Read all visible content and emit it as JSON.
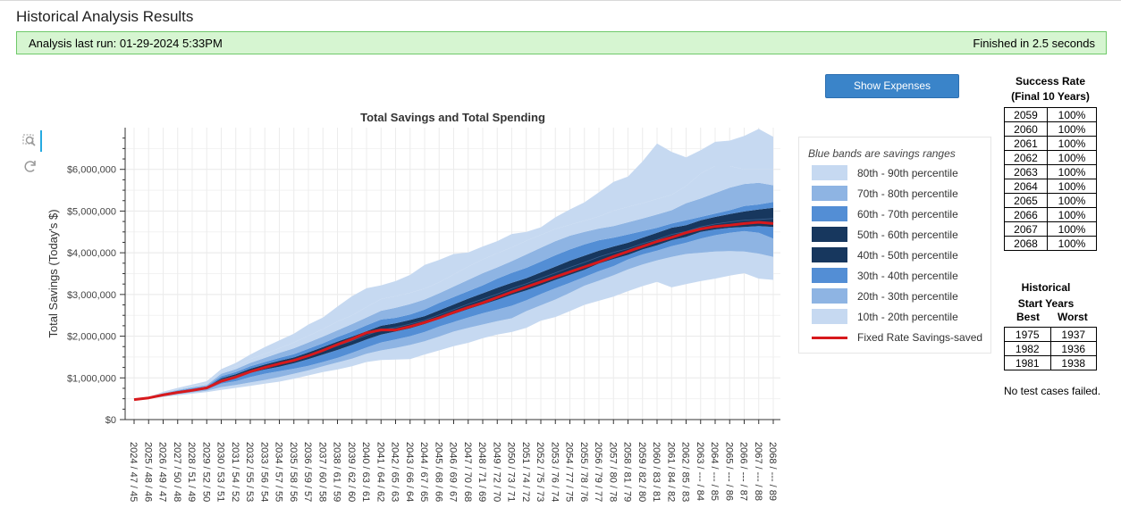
{
  "header": {
    "title": "Historical Analysis Results"
  },
  "banner": {
    "last_run": "Analysis last run: 01-29-2024 5:33PM",
    "finished": "Finished in 2.5 seconds",
    "bg": "#d6f5d1",
    "border": "#6fc96a"
  },
  "toolbar": {
    "show_expenses_label": "Show Expenses",
    "tool_icons": [
      "box-zoom-icon",
      "reset-icon"
    ]
  },
  "chart_data": {
    "type": "area",
    "title": "Total Savings and Total Spending",
    "xlabel": "",
    "ylabel": "Total Savings (Today's $)",
    "ylim": [
      0,
      7000000
    ],
    "y_ticks": [
      0,
      1000000,
      2000000,
      3000000,
      4000000,
      5000000,
      6000000
    ],
    "y_tick_labels": [
      "$0",
      "$1,000,000",
      "$2,000,000",
      "$3,000,000",
      "$4,000,000",
      "$5,000,000",
      "$6,000,000"
    ],
    "categories": [
      "2024 / 47 / 45",
      "2025 / 48 / 46",
      "2026 / 49 / 47",
      "2027 / 50 / 48",
      "2028 / 51 / 49",
      "2029 / 52 / 50",
      "2030 / 53 / 51",
      "2031 / 54 / 52",
      "2032 / 55 / 53",
      "2033 / 56 / 54",
      "2034 / 57 / 55",
      "2035 / 58 / 56",
      "2036 / 59 / 57",
      "2037 / 60 / 58",
      "2038 / 61 / 59",
      "2039 / 62 / 60",
      "2040 / 63 / 61",
      "2041 / 64 / 62",
      "2042 / 65 / 63",
      "2043 / 66 / 64",
      "2044 / 67 / 65",
      "2045 / 68 / 66",
      "2046 / 69 / 67",
      "2047 / 70 / 68",
      "2048 / 71 / 69",
      "2049 / 72 / 70",
      "2050 / 73 / 71",
      "2051 / 74 / 72",
      "2052 / 75 / 73",
      "2053 / 76 / 74",
      "2054 / 77 / 75",
      "2055 / 78 / 76",
      "2056 / 79 / 77",
      "2057 / 80 / 78",
      "2058 / 81 / 79",
      "2059 / 82 / 80",
      "2060 / 83 / 81",
      "2061 / 84 / 82",
      "2062 / 85 / 83",
      "2063 / --- / 84",
      "2064 / --- / 85",
      "2065 / --- / 86",
      "2066 / --- / 87",
      "2067 / --- / 88",
      "2068 / --- / 89"
    ],
    "percentile_bounds": [
      {
        "name": "10th",
        "values": [
          470000,
          500000,
          540000,
          580000,
          620000,
          660000,
          710000,
          760000,
          810000,
          860000,
          910000,
          980000,
          1060000,
          1140000,
          1200000,
          1280000,
          1380000,
          1430000,
          1440000,
          1450000,
          1560000,
          1660000,
          1760000,
          1840000,
          1950000,
          2040000,
          2100000,
          2200000,
          2370000,
          2460000,
          2600000,
          2750000,
          2850000,
          2950000,
          3080000,
          3200000,
          3300000,
          3170000,
          3250000,
          3320000,
          3380000,
          3450000,
          3510000,
          3380000,
          3350000
        ]
      },
      {
        "name": "20th",
        "values": [
          470000,
          505000,
          560000,
          610000,
          650000,
          690000,
          780000,
          830000,
          890000,
          950000,
          1020000,
          1100000,
          1180000,
          1280000,
          1370000,
          1460000,
          1580000,
          1660000,
          1720000,
          1790000,
          1880000,
          1990000,
          2110000,
          2200000,
          2280000,
          2360000,
          2430000,
          2600000,
          2740000,
          2880000,
          3040000,
          3210000,
          3330000,
          3460000,
          3600000,
          3720000,
          3820000,
          3900000,
          3970000,
          4000000,
          4030000,
          4040000,
          4030000,
          3980000,
          3900000
        ]
      },
      {
        "name": "30th",
        "values": [
          470000,
          508000,
          575000,
          630000,
          680000,
          720000,
          860000,
          920000,
          1020000,
          1100000,
          1160000,
          1220000,
          1290000,
          1380000,
          1480000,
          1600000,
          1730000,
          1850000,
          1920000,
          2000000,
          2100000,
          2230000,
          2340000,
          2450000,
          2550000,
          2640000,
          2730000,
          2860000,
          3010000,
          3150000,
          3280000,
          3420000,
          3560000,
          3680000,
          3840000,
          3960000,
          4050000,
          4160000,
          4240000,
          4340000,
          4420000,
          4480000,
          4520000,
          4480000,
          4340000
        ]
      },
      {
        "name": "40th",
        "values": [
          470000,
          512000,
          590000,
          650000,
          700000,
          740000,
          930000,
          1010000,
          1120000,
          1200000,
          1270000,
          1350000,
          1450000,
          1560000,
          1670000,
          1790000,
          1920000,
          2040000,
          2110000,
          2190000,
          2290000,
          2410000,
          2530000,
          2650000,
          2760000,
          2870000,
          2990000,
          3100000,
          3220000,
          3350000,
          3470000,
          3590000,
          3740000,
          3850000,
          3950000,
          4080000,
          4180000,
          4300000,
          4380000,
          4500000,
          4560000,
          4600000,
          4620000,
          4640000,
          4620000
        ]
      },
      {
        "name": "50th",
        "values": [
          470000,
          515000,
          600000,
          665000,
          715000,
          760000,
          960000,
          1050000,
          1170000,
          1260000,
          1340000,
          1420000,
          1530000,
          1650000,
          1770000,
          1890000,
          2020000,
          2150000,
          2210000,
          2290000,
          2380000,
          2510000,
          2640000,
          2770000,
          2890000,
          3010000,
          3140000,
          3260000,
          3390000,
          3520000,
          3650000,
          3770000,
          3900000,
          4010000,
          4100000,
          4220000,
          4320000,
          4440000,
          4510000,
          4620000,
          4690000,
          4740000,
          4780000,
          4800000,
          4820000
        ]
      },
      {
        "name": "60th",
        "values": [
          470000,
          518000,
          610000,
          680000,
          730000,
          780000,
          990000,
          1090000,
          1220000,
          1320000,
          1410000,
          1490000,
          1610000,
          1740000,
          1870000,
          1990000,
          2120000,
          2250000,
          2310000,
          2390000,
          2480000,
          2620000,
          2760000,
          2900000,
          3030000,
          3160000,
          3280000,
          3390000,
          3530000,
          3670000,
          3810000,
          3930000,
          4050000,
          4150000,
          4240000,
          4360000,
          4480000,
          4600000,
          4660000,
          4780000,
          4860000,
          4930000,
          4990000,
          5040000,
          5080000
        ]
      },
      {
        "name": "70th",
        "values": [
          470000,
          521000,
          620000,
          695000,
          750000,
          800000,
          1040000,
          1140000,
          1280000,
          1380000,
          1480000,
          1570000,
          1700000,
          1830000,
          1980000,
          2110000,
          2260000,
          2400000,
          2440000,
          2520000,
          2640000,
          2800000,
          2940000,
          3080000,
          3220000,
          3380000,
          3520000,
          3640000,
          3790000,
          3940000,
          4080000,
          4200000,
          4300000,
          4360000,
          4440000,
          4520000,
          4600000,
          4700000,
          4780000,
          4860000,
          4940000,
          5020000,
          5120000,
          5160000,
          5220000
        ]
      },
      {
        "name": "80th",
        "values": [
          470000,
          525000,
          635000,
          710000,
          775000,
          830000,
          1100000,
          1210000,
          1360000,
          1480000,
          1600000,
          1710000,
          1850000,
          1990000,
          2140000,
          2290000,
          2450000,
          2610000,
          2680000,
          2770000,
          2880000,
          3030000,
          3190000,
          3350000,
          3510000,
          3650000,
          3800000,
          3960000,
          4120000,
          4280000,
          4410000,
          4500000,
          4580000,
          4640000,
          4730000,
          4820000,
          4920000,
          5020000,
          5190000,
          5300000,
          5430000,
          5560000,
          5650000,
          5680000,
          5620000
        ]
      },
      {
        "name": "90th",
        "values": [
          470000,
          530000,
          650000,
          730000,
          800000,
          870000,
          1160000,
          1280000,
          1450000,
          1580000,
          1710000,
          1850000,
          2010000,
          2170000,
          2350000,
          2500000,
          2700000,
          2890000,
          2960000,
          3040000,
          3140000,
          3290000,
          3480000,
          3670000,
          3840000,
          3990000,
          4130000,
          4290000,
          4430000,
          4570000,
          4670000,
          4770000,
          4870000,
          5010000,
          5100000,
          5190000,
          5290000,
          5390000,
          5600000,
          5900000,
          6080000,
          6080000,
          6000000,
          6000000,
          6000000
        ]
      },
      {
        "name": "max",
        "values": [
          470000,
          540000,
          670000,
          760000,
          840000,
          920000,
          1210000,
          1360000,
          1560000,
          1740000,
          1900000,
          2060000,
          2280000,
          2450000,
          2710000,
          2960000,
          3150000,
          3220000,
          3320000,
          3470000,
          3710000,
          3830000,
          3970000,
          4010000,
          4150000,
          4280000,
          4450000,
          4500000,
          4610000,
          4850000,
          5040000,
          5210000,
          5450000,
          5700000,
          5830000,
          6190000,
          6620000,
          6420000,
          6290000,
          6460000,
          6660000,
          6690000,
          6800000,
          6970000,
          6780000
        ]
      }
    ],
    "fixed_rate_line": {
      "name": "Fixed Rate Savings-saved",
      "color": "#d7191c",
      "values": [
        480000,
        520000,
        590000,
        650000,
        700000,
        760000,
        920000,
        1020000,
        1150000,
        1250000,
        1340000,
        1420000,
        1530000,
        1660000,
        1800000,
        1930000,
        2080000,
        2150000,
        2150000,
        2230000,
        2330000,
        2440000,
        2570000,
        2690000,
        2800000,
        2930000,
        3060000,
        3180000,
        3300000,
        3420000,
        3540000,
        3660000,
        3780000,
        3910000,
        4030000,
        4150000,
        4270000,
        4370000,
        4480000,
        4570000,
        4630000,
        4660000,
        4700000,
        4730000,
        4700000
      ]
    },
    "bands": [
      {
        "label": "80th - 90th percentile",
        "color": "#c6d9f1"
      },
      {
        "label": "70th - 80th percentile",
        "color": "#8eb4e3"
      },
      {
        "label": "60th - 70th percentile",
        "color": "#538ed5"
      },
      {
        "label": "50th - 60th percentile",
        "color": "#17375e"
      },
      {
        "label": "40th - 50th percentile",
        "color": "#17375e"
      },
      {
        "label": "30th - 40th percentile",
        "color": "#538ed5"
      },
      {
        "label": "20th - 30th percentile",
        "color": "#8eb4e3"
      },
      {
        "label": "10th - 20th percentile",
        "color": "#c6d9f1"
      }
    ],
    "legend_title": "Blue bands are savings ranges",
    "legend_position": "right"
  },
  "success": {
    "title_line1": "Success Rate",
    "title_line2": "(Final 10 Years)",
    "rows": [
      {
        "year": "2059",
        "rate": "100%"
      },
      {
        "year": "2060",
        "rate": "100%"
      },
      {
        "year": "2061",
        "rate": "100%"
      },
      {
        "year": "2062",
        "rate": "100%"
      },
      {
        "year": "2063",
        "rate": "100%"
      },
      {
        "year": "2064",
        "rate": "100%"
      },
      {
        "year": "2065",
        "rate": "100%"
      },
      {
        "year": "2066",
        "rate": "100%"
      },
      {
        "year": "2067",
        "rate": "100%"
      },
      {
        "year": "2068",
        "rate": "100%"
      }
    ]
  },
  "historical": {
    "title_line1": "Historical",
    "title_line2": "Start Years",
    "best_header": "Best",
    "worst_header": "Worst",
    "rows": [
      {
        "best": "1975",
        "worst": "1937"
      },
      {
        "best": "1982",
        "worst": "1936"
      },
      {
        "best": "1981",
        "worst": "1938"
      }
    ]
  },
  "note": "No test cases failed."
}
